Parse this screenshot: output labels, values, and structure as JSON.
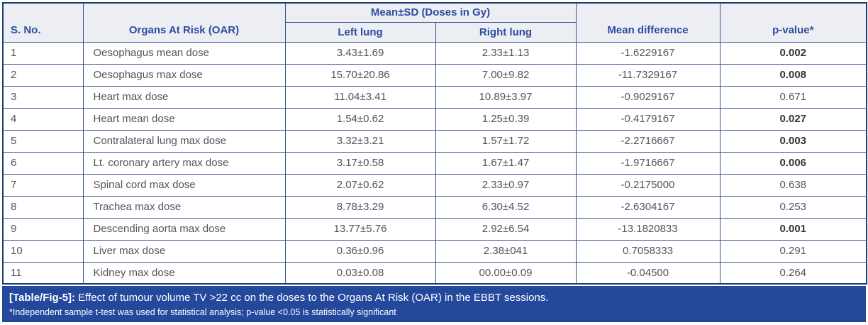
{
  "table": {
    "header": {
      "s_no": "S. No.",
      "oar": "Organs At Risk (OAR)",
      "mean_sd_group": "Mean±SD (Doses in Gy)",
      "left_lung": "Left lung",
      "right_lung": "Right lung",
      "mean_difference": "Mean difference",
      "p_value": "p-value*"
    },
    "rows": [
      {
        "s_no": "1",
        "organ": "Oesophagus mean dose",
        "left": "3.43±1.69",
        "right": "2.33±1.13",
        "diff": "-1.6229167",
        "p": "0.002",
        "p_bold": true
      },
      {
        "s_no": "2",
        "organ": "Oesophagus max dose",
        "left": "15.70±20.86",
        "right": "7.00±9.82",
        "diff": "-11.7329167",
        "p": "0.008",
        "p_bold": true
      },
      {
        "s_no": "3",
        "organ": "Heart max dose",
        "left": "11.04±3.41",
        "right": "10.89±3.97",
        "diff": "-0.9029167",
        "p": "0.671",
        "p_bold": false
      },
      {
        "s_no": "4",
        "organ": "Heart mean dose",
        "left": "1.54±0.62",
        "right": "1.25±0.39",
        "diff": "-0.4179167",
        "p": "0.027",
        "p_bold": true
      },
      {
        "s_no": "5",
        "organ": "Contralateral lung max dose",
        "left": "3.32±3.21",
        "right": "1.57±1.72",
        "diff": "-2.2716667",
        "p": "0.003",
        "p_bold": true
      },
      {
        "s_no": "6",
        "organ": "Lt. coronary artery max dose",
        "left": "3.17±0.58",
        "right": "1.67±1.47",
        "diff": "-1.9716667",
        "p": "0.006",
        "p_bold": true
      },
      {
        "s_no": "7",
        "organ": "Spinal cord max dose",
        "left": "2.07±0.62",
        "right": "2.33±0.97",
        "diff": "-0.2175000",
        "p": "0.638",
        "p_bold": false
      },
      {
        "s_no": "8",
        "organ": "Trachea max dose",
        "left": "8.78±3.29",
        "right": "6.30±4.52",
        "diff": "-2.6304167",
        "p": "0.253",
        "p_bold": false
      },
      {
        "s_no": "9",
        "organ": "Descending aorta max dose",
        "left": "13.77±5.76",
        "right": "2.92±6.54",
        "diff": "-13.1820833",
        "p": "0.001",
        "p_bold": true
      },
      {
        "s_no": "10",
        "organ": "Liver max dose",
        "left": "0.36±0.96",
        "right": "2.38±041",
        "diff": "0.7058333",
        "p": "0.291",
        "p_bold": false
      },
      {
        "s_no": "11",
        "organ": "Kidney max dose",
        "left": "0.03±0.08",
        "right": "00.00±0.09",
        "diff": "-0.04500",
        "p": "0.264",
        "p_bold": false
      }
    ]
  },
  "caption": {
    "label": "[Table/Fig-5]:",
    "text": "Effect of tumour volume TV >22 cc on the doses to the Organs At Risk (OAR) in the EBBT sessions.",
    "footnote": "*Independent sample t-test was used for statistical analysis; p-value <0.05 is statistically significant"
  },
  "colors": {
    "header_bg": "#EDEEF4",
    "header_text": "#2C4C9E",
    "border_inner": "#31538A",
    "border_outer": "#1C3C72",
    "caption_bg": "#24499C",
    "caption_text": "#FFFFFF",
    "body_text": "#54555A",
    "p_bold_text": "#363636"
  }
}
